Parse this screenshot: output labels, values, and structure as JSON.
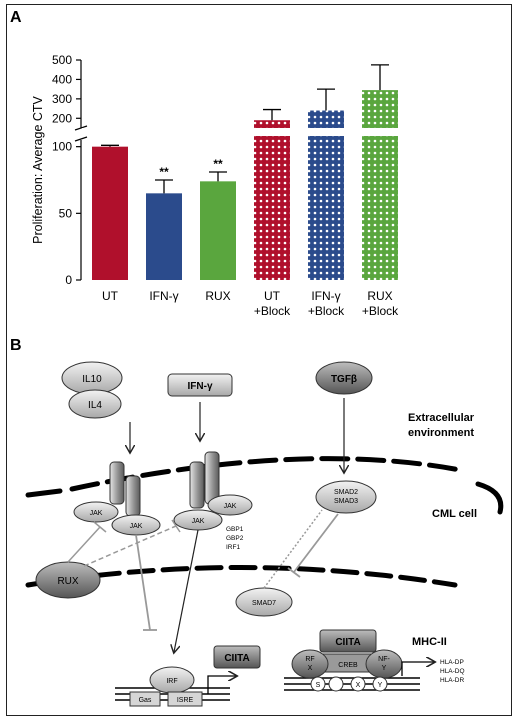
{
  "panel_a": {
    "label": "A",
    "chart_data": {
      "type": "bar",
      "title": "",
      "ylabel": "Proliferation: Average CTV",
      "xlabel": "",
      "axis_break": true,
      "lower_ylim": [
        0,
        105
      ],
      "lower_yticks": [
        "0",
        "50",
        "100"
      ],
      "upper_ylim": [
        150,
        500
      ],
      "upper_yticks": [
        "200",
        "300",
        "400",
        "500"
      ],
      "categories": [
        {
          "id": "ut",
          "line1": "UT",
          "line2": ""
        },
        {
          "id": "ifng",
          "line1": "IFN-γ",
          "line2": ""
        },
        {
          "id": "rux",
          "line1": "RUX",
          "line2": ""
        },
        {
          "id": "ut_block",
          "line1": "UT",
          "line2": "+Block"
        },
        {
          "id": "ifng_block",
          "line1": "IFN-γ",
          "line2": "+Block"
        },
        {
          "id": "rux_block",
          "line1": "RUX",
          "line2": "+Block"
        }
      ],
      "values": [
        100,
        65,
        74,
        190,
        240,
        345
      ],
      "errors": [
        1,
        10,
        7,
        55,
        110,
        130
      ],
      "significance": [
        "",
        "**",
        "**",
        "",
        "",
        ""
      ],
      "colors": [
        "#b0102c",
        "#2b4b8c",
        "#5aa63e",
        "#b0102c",
        "#2b4b8c",
        "#5aa63e"
      ],
      "patterned": [
        false,
        false,
        false,
        true,
        true,
        true
      ],
      "grid": false
    }
  },
  "panel_b": {
    "label": "B",
    "ligands": {
      "il10": "IL10",
      "il4": "IL4",
      "ifng": "IFN-γ",
      "tgfb": "TGFβ"
    },
    "regions": {
      "extracellular_1": "Extracellular",
      "extracellular_2": "environment",
      "cml_cell": "CML cell",
      "mhc": "MHC-II"
    },
    "jak": "JAK",
    "gbp": [
      "GBP1",
      "GBP2",
      "IRF1"
    ],
    "rux": "RUX",
    "smad23": [
      "SMAD2",
      "SMAD3"
    ],
    "smad7": "SMAD7",
    "ciita": "CIITA",
    "irf": "IRF",
    "gas": "Gas",
    "isre": "ISRE",
    "rfx": [
      "RF",
      "X"
    ],
    "creb": "CREB",
    "nfy": [
      "NF-",
      "Y"
    ],
    "svxy": [
      "S",
      "",
      "X",
      "Y"
    ],
    "hla": [
      "HLA-DP",
      "HLA-DQ",
      "HLA-DR"
    ]
  }
}
